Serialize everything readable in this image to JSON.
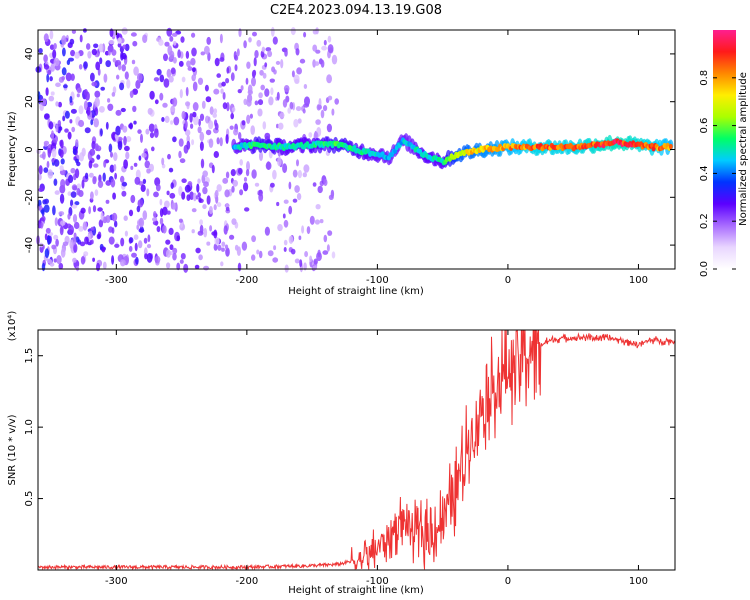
{
  "figure": {
    "title": "C2E4.2023.094.13.19.G08"
  },
  "chart_data": [
    {
      "type": "heatmap",
      "xlabel": "Height of straight line (km)",
      "ylabel": "Frequency (Hz)",
      "xlim": [
        -360,
        128
      ],
      "ylim": [
        -50,
        50
      ],
      "x_ticks": [
        -300,
        -200,
        -100,
        0,
        100
      ],
      "x_tick_labels": [
        "-300",
        "-200",
        "-100",
        "0",
        "100"
      ],
      "y_ticks": [
        -40,
        -20,
        0,
        20,
        40
      ],
      "y_tick_labels": [
        "-40",
        "-20",
        "0",
        "20",
        "40"
      ],
      "colorbar": {
        "label": "Normalized spectral amplitude",
        "range": [
          0.0,
          1.0
        ],
        "ticks": [
          0.0,
          0.2,
          0.4,
          0.6,
          0.8
        ],
        "tick_labels": [
          "0.0",
          "0.2",
          "0.4",
          "0.6",
          "0.8"
        ],
        "colors": [
          "#ffffff",
          "#e9d6ff",
          "#a86bff",
          "#5b00ff",
          "#0033ff",
          "#00ccff",
          "#00ff66",
          "#aaff00",
          "#ffee00",
          "#ff8800",
          "#ff1a1a",
          "#ff1f8f"
        ]
      },
      "noise_region": {
        "x": [
          -360,
          -140
        ],
        "y": [
          -50,
          50
        ],
        "amplitude_range": [
          0.1,
          0.35
        ]
      },
      "signal_trace": [
        {
          "x": -210,
          "y": 1,
          "amp": 0.45
        },
        {
          "x": -190,
          "y": 2,
          "amp": 0.55
        },
        {
          "x": -170,
          "y": 1,
          "amp": 0.5
        },
        {
          "x": -150,
          "y": 2,
          "amp": 0.5
        },
        {
          "x": -130,
          "y": 2,
          "amp": 0.55
        },
        {
          "x": -110,
          "y": -1,
          "amp": 0.5
        },
        {
          "x": -90,
          "y": -3,
          "amp": 0.45
        },
        {
          "x": -80,
          "y": 4,
          "amp": 0.45
        },
        {
          "x": -65,
          "y": -2,
          "amp": 0.5
        },
        {
          "x": -50,
          "y": -5,
          "amp": 0.5
        },
        {
          "x": -38,
          "y": -2,
          "amp": 0.7
        },
        {
          "x": -20,
          "y": 0,
          "amp": 0.75
        },
        {
          "x": 0,
          "y": 1,
          "amp": 0.8
        },
        {
          "x": 20,
          "y": 1,
          "amp": 0.85
        },
        {
          "x": 50,
          "y": 1,
          "amp": 0.85
        },
        {
          "x": 85,
          "y": 3,
          "amp": 0.9
        },
        {
          "x": 110,
          "y": 1,
          "amp": 0.85
        },
        {
          "x": 125,
          "y": 1,
          "amp": 0.8
        }
      ]
    },
    {
      "type": "line",
      "xlabel": "Height of straight line (km)",
      "ylabel": "SNR (10 * v/v)",
      "y_multiplier": "(x10⁴)",
      "xlim": [
        -360,
        128
      ],
      "ylim": [
        0,
        1.68
      ],
      "x_ticks": [
        -300,
        -200,
        -100,
        0,
        100
      ],
      "x_tick_labels": [
        "-300",
        "-200",
        "-100",
        "0",
        "100"
      ],
      "y_ticks": [
        0.5,
        1.0,
        1.5
      ],
      "y_tick_labels": [
        "0.5",
        "1.0",
        "1.5"
      ],
      "color": "#ee3333",
      "series": [
        {
          "x": [
            -360,
            -300,
            -250,
            -200,
            -150,
            -130,
            -110,
            -100,
            -90,
            -80,
            -70,
            -60,
            -50,
            -40,
            -30,
            -20,
            -10,
            0,
            10,
            20,
            30,
            40,
            60,
            80,
            100,
            110,
            128
          ],
          "y": [
            0.02,
            0.02,
            0.02,
            0.02,
            0.03,
            0.04,
            0.08,
            0.15,
            0.25,
            0.35,
            0.25,
            0.25,
            0.35,
            0.55,
            0.9,
            1.15,
            1.3,
            1.4,
            1.5,
            1.55,
            1.6,
            1.62,
            1.63,
            1.62,
            1.58,
            1.61,
            1.6
          ]
        }
      ]
    }
  ]
}
